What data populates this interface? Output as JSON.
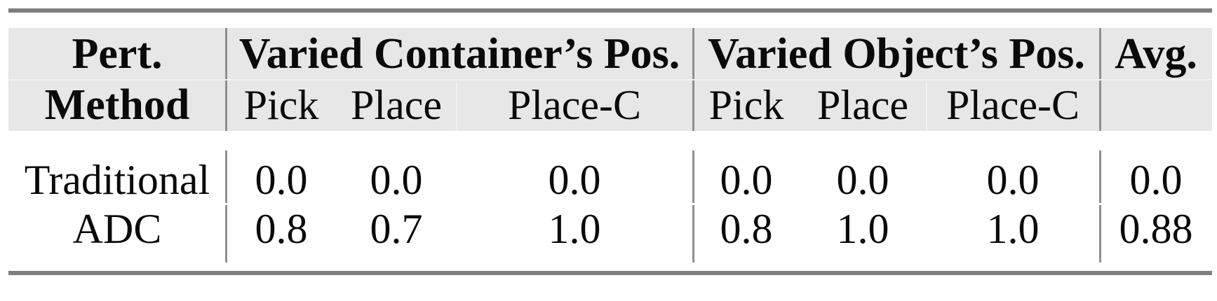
{
  "table": {
    "header": {
      "method_col_line1": "Pert.",
      "method_col_line2": "Method",
      "group1_title": "Varied Container’s Pos.",
      "group2_title": "Varied Object’s Pos.",
      "avg_title": "Avg.",
      "subheaders": [
        "Pick",
        "Place",
        "Place-C",
        "Pick",
        "Place",
        "Place-C"
      ]
    },
    "rows": [
      {
        "method": "Traditional",
        "values": [
          "0.0",
          "0.0",
          "0.0",
          "0.0",
          "0.0",
          "0.0",
          "0.0"
        ]
      },
      {
        "method": "ADC",
        "values": [
          "0.8",
          "0.7",
          "1.0",
          "0.8",
          "1.0",
          "1.0",
          "0.88"
        ]
      }
    ],
    "colors": {
      "header_background": "#e7e7e7",
      "rule_gray": "#7e7e7e",
      "divider_gray": "#8f8f8f",
      "text": "#0a0a0a"
    }
  },
  "chart_data": {
    "type": "table",
    "title": "",
    "columns": [
      "Pert. Method",
      "Varied Container's Pos. Pick",
      "Varied Container's Pos. Place",
      "Varied Container's Pos. Place-C",
      "Varied Object's Pos. Pick",
      "Varied Object's Pos. Place",
      "Varied Object's Pos. Place-C",
      "Avg."
    ],
    "rows": [
      [
        "Traditional",
        0.0,
        0.0,
        0.0,
        0.0,
        0.0,
        0.0,
        0.0
      ],
      [
        "ADC",
        0.8,
        0.7,
        1.0,
        0.8,
        1.0,
        1.0,
        0.88
      ]
    ]
  }
}
